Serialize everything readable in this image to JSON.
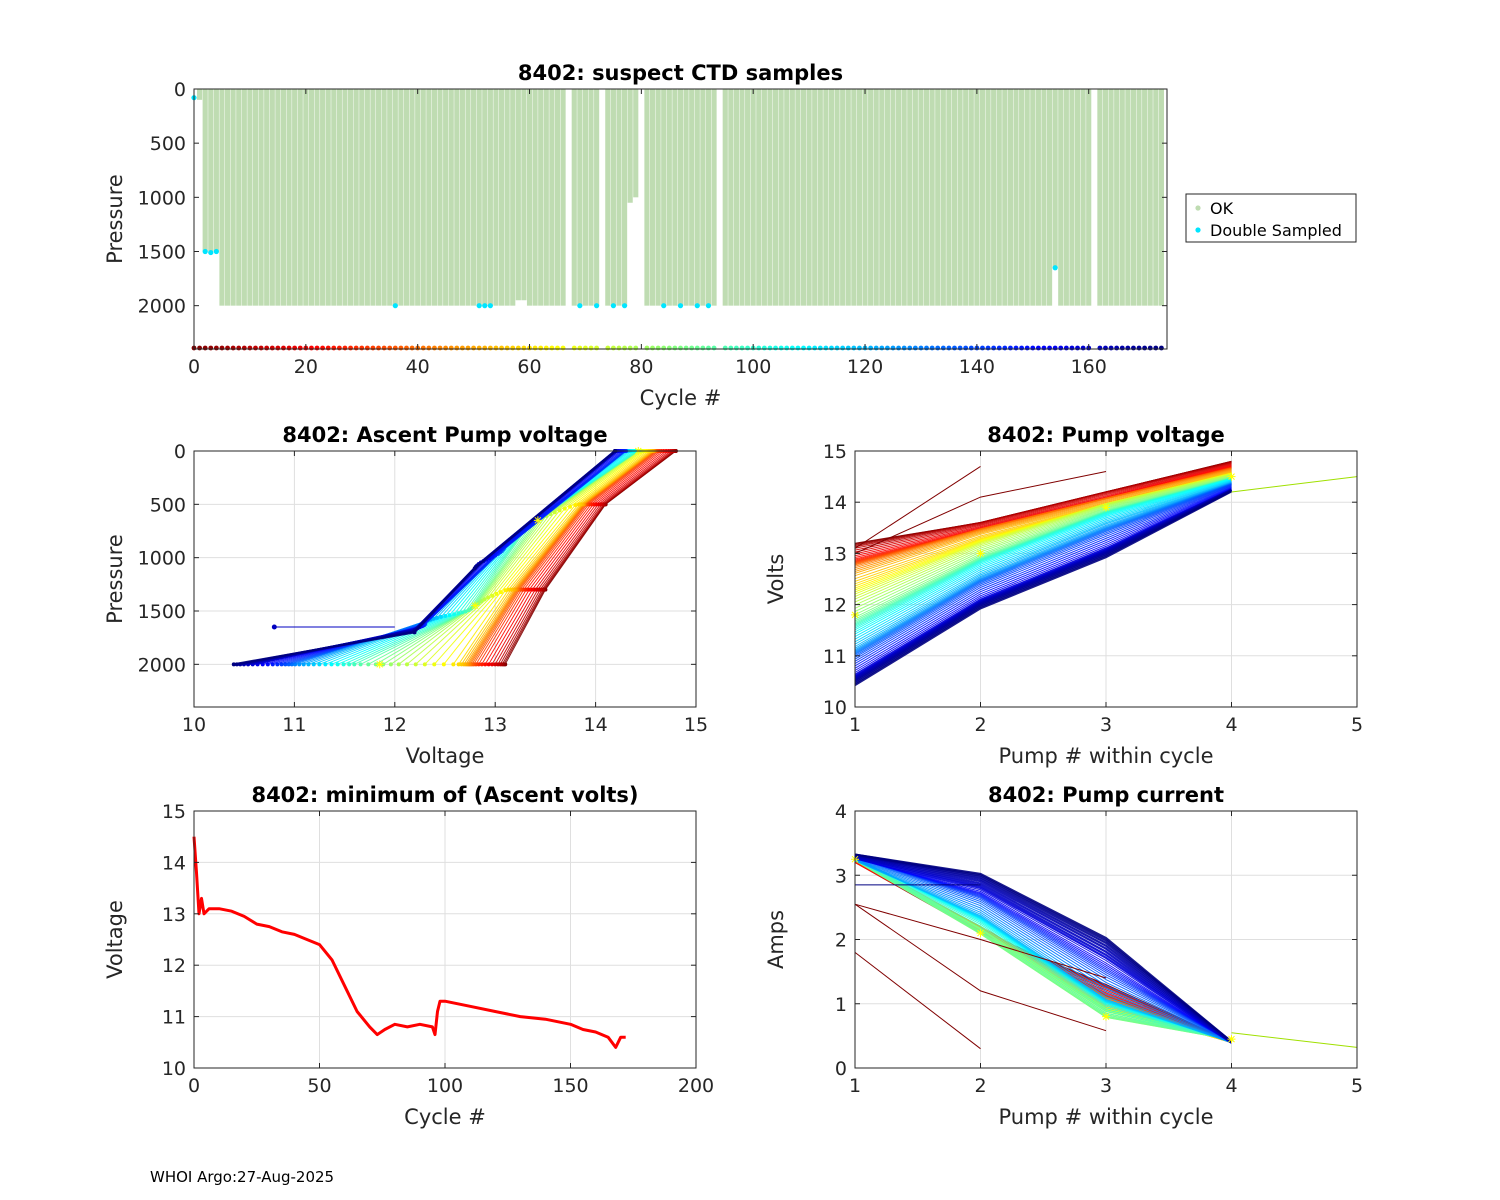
{
  "footer": "WHOI Argo:27-Aug-2025",
  "chart_data": [
    {
      "id": "ctd",
      "type": "scatter",
      "title": "8402: suspect CTD samples",
      "xlabel": "Cycle #",
      "ylabel": "Pressure",
      "xlim": [
        0,
        174
      ],
      "ylim": [
        0,
        2400
      ],
      "y_reversed": true,
      "xticks": [
        0,
        20,
        40,
        60,
        80,
        100,
        120,
        140,
        160
      ],
      "yticks": [
        0,
        500,
        1000,
        1500,
        2000
      ],
      "grid": false,
      "legend": {
        "placement": "outside-right",
        "entries": [
          "OK",
          "Double Sampled"
        ]
      },
      "colors": {
        "ok": "#bfdcb2",
        "double": "#00e5ff"
      },
      "missing_cycles": [
        67,
        73,
        80,
        94,
        161
      ],
      "partial_profiles": [
        {
          "cycle": 1,
          "max_pressure": 100
        },
        {
          "cycle": 2,
          "max_pressure": 1500
        },
        {
          "cycle": 3,
          "max_pressure": 1500
        },
        {
          "cycle": 4,
          "max_pressure": 1500
        },
        {
          "cycle": 58,
          "max_pressure": 1950
        },
        {
          "cycle": 59,
          "max_pressure": 1950
        },
        {
          "cycle": 78,
          "max_pressure": 1050
        },
        {
          "cycle": 79,
          "max_pressure": 1000
        },
        {
          "cycle": 154,
          "max_pressure": 1650
        }
      ],
      "double_sampled": [
        {
          "cycle": 0,
          "pressure": 80
        },
        {
          "cycle": 2,
          "pressure": 1500
        },
        {
          "cycle": 3,
          "pressure": 1510
        },
        {
          "cycle": 4,
          "pressure": 1500
        },
        {
          "cycle": 36,
          "pressure": 2000
        },
        {
          "cycle": 51,
          "pressure": 2000
        },
        {
          "cycle": 52,
          "pressure": 2000
        },
        {
          "cycle": 53,
          "pressure": 2000
        },
        {
          "cycle": 69,
          "pressure": 2000
        },
        {
          "cycle": 72,
          "pressure": 2000
        },
        {
          "cycle": 75,
          "pressure": 2000
        },
        {
          "cycle": 77,
          "pressure": 2000
        },
        {
          "cycle": 84,
          "pressure": 2000
        },
        {
          "cycle": 87,
          "pressure": 2000
        },
        {
          "cycle": 90,
          "pressure": 2000
        },
        {
          "cycle": 92,
          "pressure": 2000
        },
        {
          "cycle": 154,
          "pressure": 1650
        }
      ],
      "cycle_marker_pressure": 2400
    },
    {
      "id": "ascent",
      "type": "line",
      "title": "8402: Ascent Pump voltage",
      "xlabel": "Voltage",
      "ylabel": "Pressure",
      "xlim": [
        10,
        15
      ],
      "ylim": [
        0,
        2400
      ],
      "y_reversed": true,
      "xticks": [
        10,
        11,
        12,
        13,
        14,
        15
      ],
      "yticks": [
        0,
        500,
        1000,
        1500,
        2000
      ],
      "grid": true,
      "series_anchors": [
        {
          "t": 0.0,
          "points": [
            [
              13.1,
              2000
            ],
            [
              13.5,
              1300
            ],
            [
              14.1,
              500
            ],
            [
              14.8,
              0
            ]
          ]
        },
        {
          "t": 0.35,
          "points": [
            [
              12.6,
              2000
            ],
            [
              13.1,
              1300
            ],
            [
              13.8,
              500
            ],
            [
              14.5,
              0
            ]
          ]
        },
        {
          "t": 0.55,
          "points": [
            [
              11.6,
              2000
            ],
            [
              12.7,
              1500
            ],
            [
              13.3,
              700
            ],
            [
              14.4,
              0
            ]
          ]
        },
        {
          "t": 0.75,
          "points": [
            [
              11.0,
              2000
            ],
            [
              12.3,
              1600
            ],
            [
              13.1,
              900
            ],
            [
              14.3,
              0
            ]
          ]
        },
        {
          "t": 1.0,
          "points": [
            [
              10.4,
              2000
            ],
            [
              12.2,
              1700
            ],
            [
              12.8,
              1100
            ],
            [
              14.2,
              0
            ]
          ]
        }
      ],
      "outlier_segment": [
        [
          10.8,
          1650
        ],
        [
          12.0,
          1650
        ]
      ]
    },
    {
      "id": "pumpv",
      "type": "line",
      "title": "8402: Pump voltage",
      "xlabel": "Pump # within cycle",
      "ylabel": "Volts",
      "xlim": [
        1,
        5
      ],
      "ylim": [
        10,
        15
      ],
      "xticks": [
        1,
        2,
        3,
        4,
        5
      ],
      "yticks": [
        10,
        11,
        12,
        13,
        14,
        15
      ],
      "grid": true,
      "series_anchors": [
        {
          "t": 0.0,
          "points": [
            [
              1,
              13.2
            ],
            [
              2,
              13.6
            ],
            [
              3,
              14.2
            ],
            [
              4,
              14.8
            ]
          ]
        },
        {
          "t": 0.3,
          "points": [
            [
              1,
              12.6
            ],
            [
              2,
              13.4
            ],
            [
              3,
              14.0
            ],
            [
              4,
              14.6
            ]
          ]
        },
        {
          "t": 0.5,
          "points": [
            [
              1,
              11.8
            ],
            [
              2,
              13.0
            ],
            [
              3,
              13.9
            ],
            [
              4,
              14.5
            ]
          ]
        },
        {
          "t": 0.7,
          "points": [
            [
              1,
              11.2
            ],
            [
              2,
              12.6
            ],
            [
              3,
              13.6
            ],
            [
              4,
              14.4
            ]
          ]
        },
        {
          "t": 1.0,
          "points": [
            [
              1,
              10.4
            ],
            [
              2,
              11.9
            ],
            [
              3,
              12.9
            ],
            [
              4,
              14.2
            ]
          ]
        }
      ],
      "extra_lines": [
        {
          "color": "#800000",
          "points": [
            [
              1,
              13.1
            ],
            [
              2,
              14.7
            ]
          ]
        },
        {
          "color": "#800000",
          "points": [
            [
              1,
              13.0
            ],
            [
              2,
              14.1
            ],
            [
              3,
              14.6
            ]
          ]
        },
        {
          "color": "#a0e000",
          "points": [
            [
              4,
              14.2
            ],
            [
              5,
              14.5
            ]
          ]
        }
      ]
    },
    {
      "id": "minv",
      "type": "line",
      "title": "8402: minimum of (Ascent volts)",
      "xlabel": "Cycle #",
      "ylabel": "Voltage",
      "xlim": [
        0,
        200
      ],
      "ylim": [
        10,
        15
      ],
      "xticks": [
        0,
        50,
        100,
        150,
        200
      ],
      "yticks": [
        10,
        11,
        12,
        13,
        14,
        15
      ],
      "grid": true,
      "color": "#ff0000",
      "x": [
        0,
        1,
        2,
        3,
        4,
        6,
        10,
        15,
        20,
        25,
        30,
        35,
        40,
        45,
        50,
        55,
        60,
        65,
        70,
        73,
        76,
        80,
        85,
        90,
        95,
        96,
        97,
        98,
        100,
        110,
        120,
        130,
        140,
        150,
        155,
        160,
        165,
        168,
        170,
        172
      ],
      "values": [
        14.5,
        13.8,
        13.0,
        13.3,
        13.0,
        13.1,
        13.1,
        13.05,
        12.95,
        12.8,
        12.75,
        12.65,
        12.6,
        12.5,
        12.4,
        12.1,
        11.6,
        11.1,
        10.8,
        10.65,
        10.75,
        10.85,
        10.8,
        10.85,
        10.8,
        10.65,
        11.1,
        11.3,
        11.3,
        11.2,
        11.1,
        11.0,
        10.95,
        10.85,
        10.75,
        10.7,
        10.6,
        10.4,
        10.6,
        10.6
      ]
    },
    {
      "id": "pumpc",
      "type": "line",
      "title": "8402: Pump current",
      "xlabel": "Pump # within cycle",
      "ylabel": "Amps",
      "xlim": [
        1,
        5
      ],
      "ylim": [
        0,
        4
      ],
      "xticks": [
        1,
        2,
        3,
        4,
        5
      ],
      "yticks": [
        0,
        1,
        2,
        3,
        4
      ],
      "grid": true,
      "series_anchors": [
        {
          "t": 0.0,
          "points": [
            [
              1,
              3.2
            ],
            [
              2,
              2.1
            ],
            [
              3,
              1.3
            ],
            [
              4,
              0.4
            ]
          ]
        },
        {
          "t": 0.3,
          "points": [
            [
              1,
              3.25
            ],
            [
              2,
              2.2
            ],
            [
              3,
              1.0
            ],
            [
              4,
              0.4
            ]
          ]
        },
        {
          "t": 0.5,
          "points": [
            [
              1,
              3.25
            ],
            [
              2,
              2.1
            ],
            [
              3,
              0.8
            ],
            [
              4,
              0.45
            ]
          ]
        },
        {
          "t": 0.7,
          "points": [
            [
              1,
              3.25
            ],
            [
              2,
              2.4
            ],
            [
              3,
              1.1
            ],
            [
              4,
              0.4
            ]
          ]
        },
        {
          "t": 1.0,
          "points": [
            [
              1,
              3.3
            ],
            [
              2,
              3.0
            ],
            [
              3,
              2.0
            ],
            [
              4,
              0.4
            ]
          ]
        }
      ],
      "extra_lines": [
        {
          "color": "#800000",
          "points": [
            [
              1,
              2.55
            ],
            [
              2,
              2.0
            ],
            [
              3,
              1.4
            ]
          ]
        },
        {
          "color": "#800000",
          "points": [
            [
              1,
              1.8
            ],
            [
              2,
              0.3
            ]
          ]
        },
        {
          "color": "#800000",
          "points": [
            [
              1,
              2.55
            ],
            [
              2,
              1.2
            ],
            [
              3,
              0.58
            ]
          ]
        },
        {
          "color": "#000080",
          "points": [
            [
              1,
              2.85
            ],
            [
              2,
              2.85
            ]
          ]
        },
        {
          "color": "#a0e000",
          "points": [
            [
              4,
              0.55
            ],
            [
              5,
              0.32
            ]
          ]
        }
      ]
    }
  ]
}
